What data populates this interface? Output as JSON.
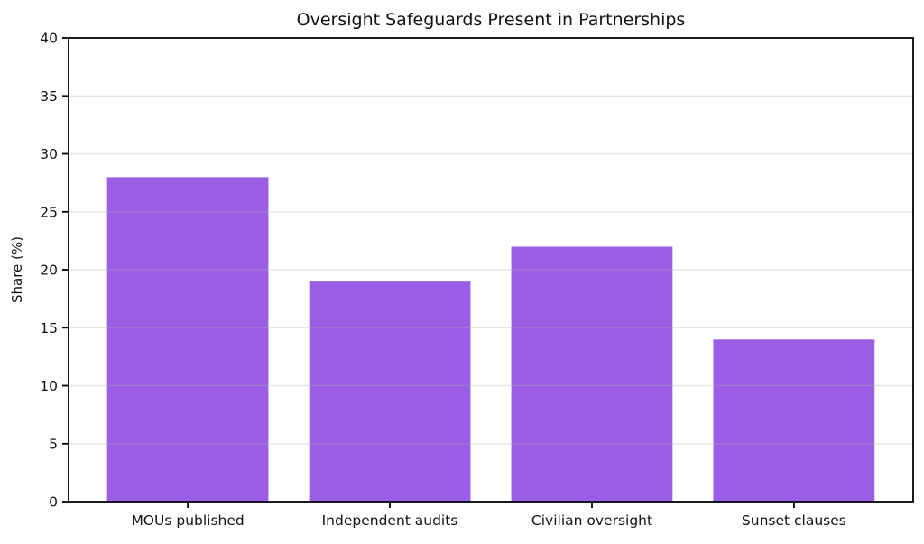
{
  "chart_data": {
    "type": "bar",
    "title": "Oversight Safeguards Present in Partnerships",
    "categories": [
      "MOUs published",
      "Independent audits",
      "Civilian oversight",
      "Sunset clauses"
    ],
    "values": [
      28,
      19,
      22,
      14
    ],
    "xlabel": "",
    "ylabel": "Share (%)",
    "ylim": [
      0,
      40
    ],
    "ytick_step": 5,
    "yticks": [
      0,
      5,
      10,
      15,
      20,
      25,
      30,
      35,
      40
    ],
    "bar_color": "#9b5de5",
    "bar_edge_color": "#b astray",
    "grid": true,
    "grid_color": "#b0b0b0",
    "legend": null,
    "background": "#ffffff",
    "frame": "box"
  }
}
